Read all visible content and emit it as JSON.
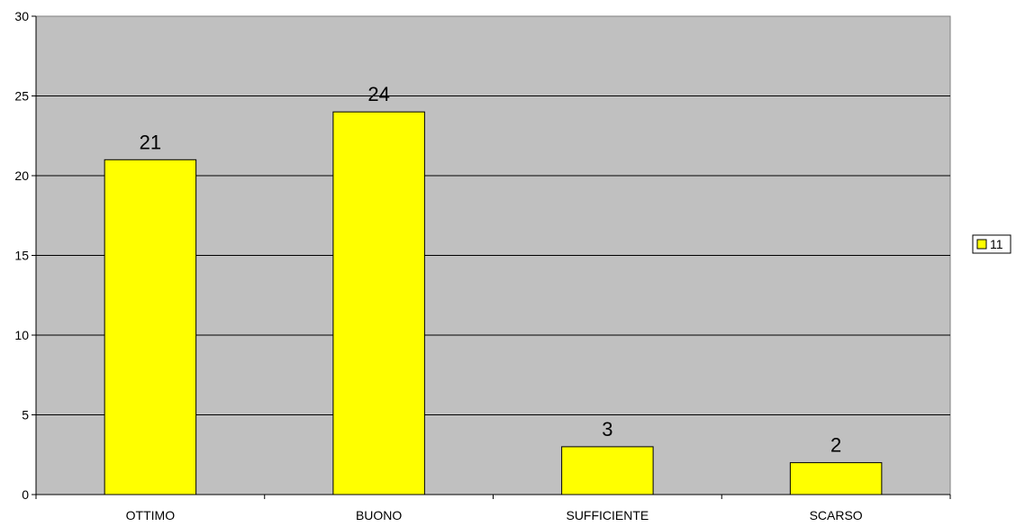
{
  "chart_data": {
    "type": "bar",
    "categories": [
      "OTTIMO",
      "BUONO",
      "SUFFICIENTE",
      "SCARSO"
    ],
    "series": [
      {
        "name": "11",
        "values": [
          21,
          24,
          3,
          2
        ]
      }
    ],
    "ylim": [
      0,
      30
    ],
    "yticks": [
      0,
      5,
      10,
      15,
      20,
      25,
      30
    ],
    "grid": true,
    "legend": "right",
    "colors": {
      "bar_fill": "#ffff00",
      "bar_stroke": "#000000",
      "plot_background": "#c0c0c0",
      "gridline": "#000000",
      "page_background": "#ffffff"
    }
  }
}
